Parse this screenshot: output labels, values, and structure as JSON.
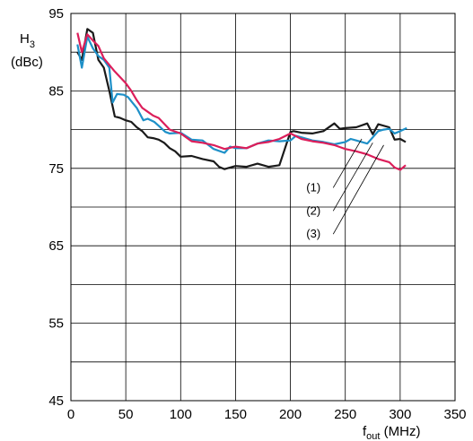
{
  "chart_data": {
    "type": "line",
    "ylabel_main": "H",
    "ylabel_sub": "3",
    "ylabel_unit": "(dBc)",
    "xlabel_main": "f",
    "xlabel_sub": "out",
    "xlabel_unit": " (MHz)",
    "xlim": [
      0,
      350
    ],
    "ylim": [
      45,
      95
    ],
    "x_ticks": [
      0,
      50,
      100,
      150,
      200,
      250,
      300,
      350
    ],
    "x_tick_labels": [
      "0",
      "50",
      "100",
      "150",
      "200",
      "250",
      "300",
      "350"
    ],
    "y_labeled_ticks": [
      45,
      55,
      65,
      75,
      85,
      95
    ],
    "y_tick_labels": [
      "45",
      "55",
      "65",
      "75",
      "85",
      "95"
    ],
    "y_gridlines": [
      45,
      50,
      55,
      60,
      65,
      70,
      75,
      80,
      85,
      90,
      95
    ],
    "grid": true,
    "callouts": [
      {
        "label": "(1)",
        "text_x": 221,
        "text_y": 72.5,
        "target_x": 265,
        "target_y": 78.8
      },
      {
        "label": "(2)",
        "text_x": 221,
        "text_y": 69.5,
        "target_x": 275,
        "target_y": 78.3
      },
      {
        "label": "(3)",
        "text_x": 221,
        "text_y": 66.5,
        "target_x": 285,
        "target_y": 78.0
      }
    ],
    "series": [
      {
        "color": "#1a1a1a",
        "x": [
          6,
          10,
          15,
          20,
          25,
          30,
          35,
          40,
          45,
          50,
          55,
          60,
          65,
          70,
          75,
          80,
          85,
          90,
          95,
          100,
          110,
          120,
          130,
          135,
          140,
          145,
          150,
          160,
          170,
          180,
          190,
          200,
          203,
          210,
          220,
          230,
          240,
          245,
          250,
          260,
          270,
          275,
          280,
          290,
          295,
          300,
          305
        ],
        "y": [
          90,
          89,
          93,
          92.5,
          89,
          88,
          85,
          81.7,
          81.5,
          81.2,
          81,
          80.3,
          79.8,
          79,
          78.9,
          78.7,
          78.3,
          77.6,
          77.2,
          76.5,
          76.6,
          76.2,
          75.9,
          75.2,
          74.9,
          75.1,
          75.3,
          75.2,
          75.6,
          75.2,
          75.4,
          79.7,
          79.8,
          79.6,
          79.5,
          79.8,
          80.8,
          80.1,
          80.2,
          80.3,
          80.8,
          79.4,
          80.7,
          80.3,
          78.7,
          78.8,
          78.4
        ]
      },
      {
        "color": "#1e90c8",
        "x": [
          6,
          10,
          15,
          20,
          25,
          30,
          35,
          38,
          42,
          48,
          52,
          56,
          60,
          66,
          70,
          76,
          80,
          86,
          90,
          100,
          110,
          120,
          130,
          140,
          145,
          150,
          160,
          170,
          180,
          190,
          200,
          205,
          210,
          220,
          230,
          240,
          250,
          255,
          260,
          270,
          280,
          285,
          290,
          295,
          300,
          306
        ],
        "y": [
          91,
          88,
          92,
          90.5,
          89.5,
          89,
          88,
          83.5,
          84.6,
          84.5,
          84.2,
          83.5,
          82.8,
          81.2,
          81.4,
          81,
          80.5,
          79.7,
          79.5,
          79.6,
          78.7,
          78.6,
          77.5,
          77,
          77.8,
          77.6,
          77.6,
          78.2,
          78.6,
          78.5,
          78.6,
          79.2,
          79,
          78.6,
          78.4,
          78.1,
          78.4,
          78.8,
          78.6,
          78.2,
          79.8,
          80,
          80.1,
          79.5,
          79.8,
          80.2
        ]
      },
      {
        "color": "#dc1e5a",
        "x": [
          6,
          10,
          15,
          20,
          25,
          30,
          40,
          50,
          55,
          60,
          65,
          70,
          75,
          80,
          90,
          100,
          110,
          120,
          130,
          140,
          150,
          160,
          170,
          180,
          190,
          200,
          210,
          220,
          230,
          240,
          250,
          260,
          270,
          280,
          290,
          295,
          300,
          305
        ],
        "y": [
          92.5,
          90,
          92.3,
          91.5,
          90.8,
          89.2,
          87.5,
          86,
          85,
          83.8,
          82.8,
          82.3,
          81.8,
          81.5,
          80,
          79.5,
          78.5,
          78.3,
          78,
          77.5,
          77.8,
          77.6,
          78.2,
          78.4,
          78.8,
          79.5,
          78.8,
          78.5,
          78.3,
          78,
          77.5,
          77.2,
          76.8,
          76.2,
          75.8,
          75.1,
          74.8,
          75.4
        ]
      }
    ]
  }
}
